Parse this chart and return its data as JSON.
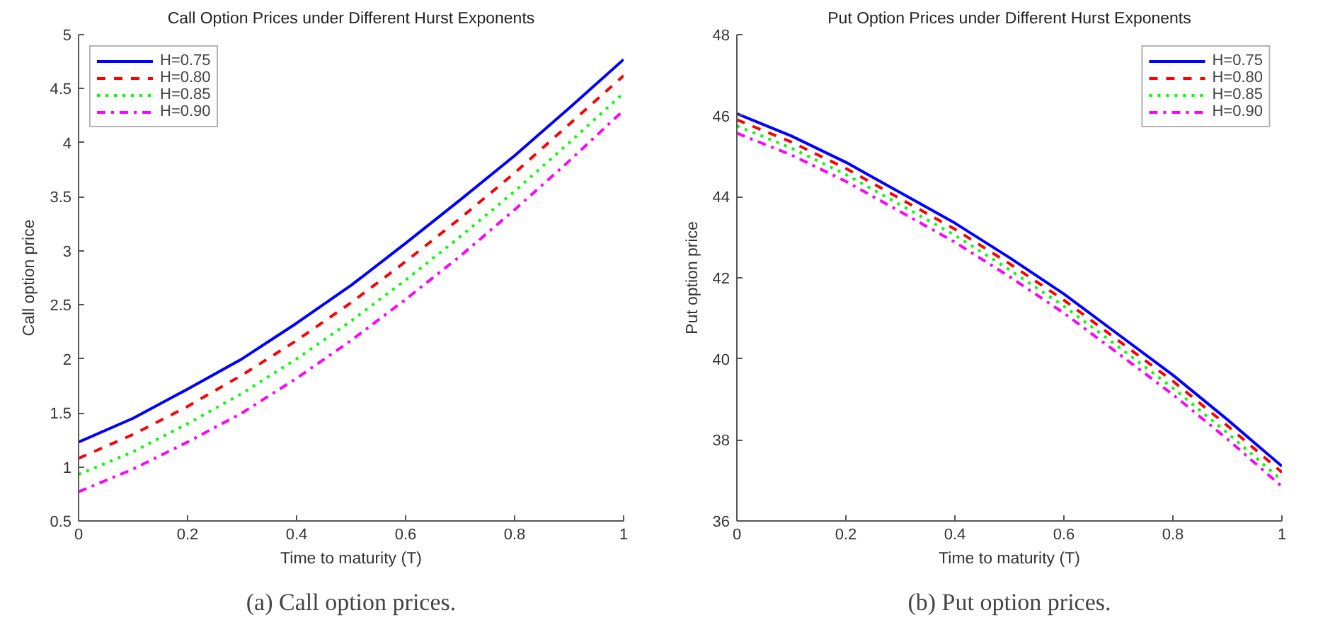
{
  "chart_data": [
    {
      "type": "line",
      "title": "Call Option Prices under Different Hurst Exponents",
      "xlabel": "Time to maturity (T)",
      "ylabel": "Call option price",
      "x": [
        0,
        0.1,
        0.2,
        0.3,
        0.4,
        0.5,
        0.6,
        0.7,
        0.8,
        0.9,
        1
      ],
      "series": [
        {
          "name": "H=0.75",
          "color": "#0000ff",
          "line_style": "solid",
          "values": [
            1.23,
            1.45,
            1.72,
            2.0,
            2.33,
            2.68,
            3.07,
            3.47,
            3.88,
            4.32,
            4.77
          ]
        },
        {
          "name": "H=0.80",
          "color": "#ff0000",
          "line_style": "dashed",
          "values": [
            1.08,
            1.3,
            1.56,
            1.85,
            2.17,
            2.52,
            2.9,
            3.3,
            3.72,
            4.17,
            4.62
          ]
        },
        {
          "name": "H=0.85",
          "color": "#00ff00",
          "line_style": "dotted",
          "values": [
            0.93,
            1.14,
            1.4,
            1.68,
            2.0,
            2.35,
            2.73,
            3.13,
            3.55,
            4.0,
            4.46
          ]
        },
        {
          "name": "H=0.90",
          "color": "#ff00ff",
          "line_style": "dashdot",
          "values": [
            0.77,
            0.98,
            1.23,
            1.5,
            1.82,
            2.17,
            2.55,
            2.95,
            3.38,
            3.83,
            4.3
          ]
        }
      ],
      "xlim": [
        0,
        1
      ],
      "xticks": [
        0,
        0.2,
        0.4,
        0.6,
        0.8,
        1
      ],
      "ylim": [
        0.5,
        5
      ],
      "yticks": [
        0.5,
        1,
        1.5,
        2,
        2.5,
        3,
        3.5,
        4,
        4.5,
        5
      ],
      "legend": "top left",
      "annotations": [
        "(a) Call option prices."
      ]
    },
    {
      "type": "line",
      "title": "Put Option Prices under Different Hurst Exponents",
      "xlabel": "Time to maturity (T)",
      "ylabel": "Put option price",
      "x": [
        0,
        0.1,
        0.2,
        0.3,
        0.4,
        0.5,
        0.6,
        0.7,
        0.8,
        0.9,
        1
      ],
      "series": [
        {
          "name": "H=0.75",
          "color": "#0000ff",
          "line_style": "solid",
          "values": [
            46.05,
            45.5,
            44.85,
            44.1,
            43.35,
            42.5,
            41.6,
            40.6,
            39.6,
            38.5,
            37.35
          ]
        },
        {
          "name": "H=0.80",
          "color": "#ff0000",
          "line_style": "dashed",
          "values": [
            45.9,
            45.35,
            44.7,
            43.95,
            43.2,
            42.35,
            41.45,
            40.45,
            39.45,
            38.35,
            37.2
          ]
        },
        {
          "name": "H=0.85",
          "color": "#00ff00",
          "line_style": "dotted",
          "values": [
            45.75,
            45.2,
            44.55,
            43.8,
            43.05,
            42.2,
            41.3,
            40.3,
            39.28,
            38.17,
            37.0
          ]
        },
        {
          "name": "H=0.90",
          "color": "#ff00ff",
          "line_style": "dashdot",
          "values": [
            45.57,
            45.03,
            44.38,
            43.63,
            42.88,
            42.03,
            41.13,
            40.13,
            39.12,
            38.02,
            36.85
          ]
        }
      ],
      "xlim": [
        0,
        1
      ],
      "xticks": [
        0,
        0.2,
        0.4,
        0.6,
        0.8,
        1
      ],
      "ylim": [
        36,
        48
      ],
      "yticks": [
        36,
        38,
        40,
        42,
        44,
        46,
        48
      ],
      "legend": "top right",
      "annotations": [
        "(b) Put option prices."
      ]
    }
  ]
}
